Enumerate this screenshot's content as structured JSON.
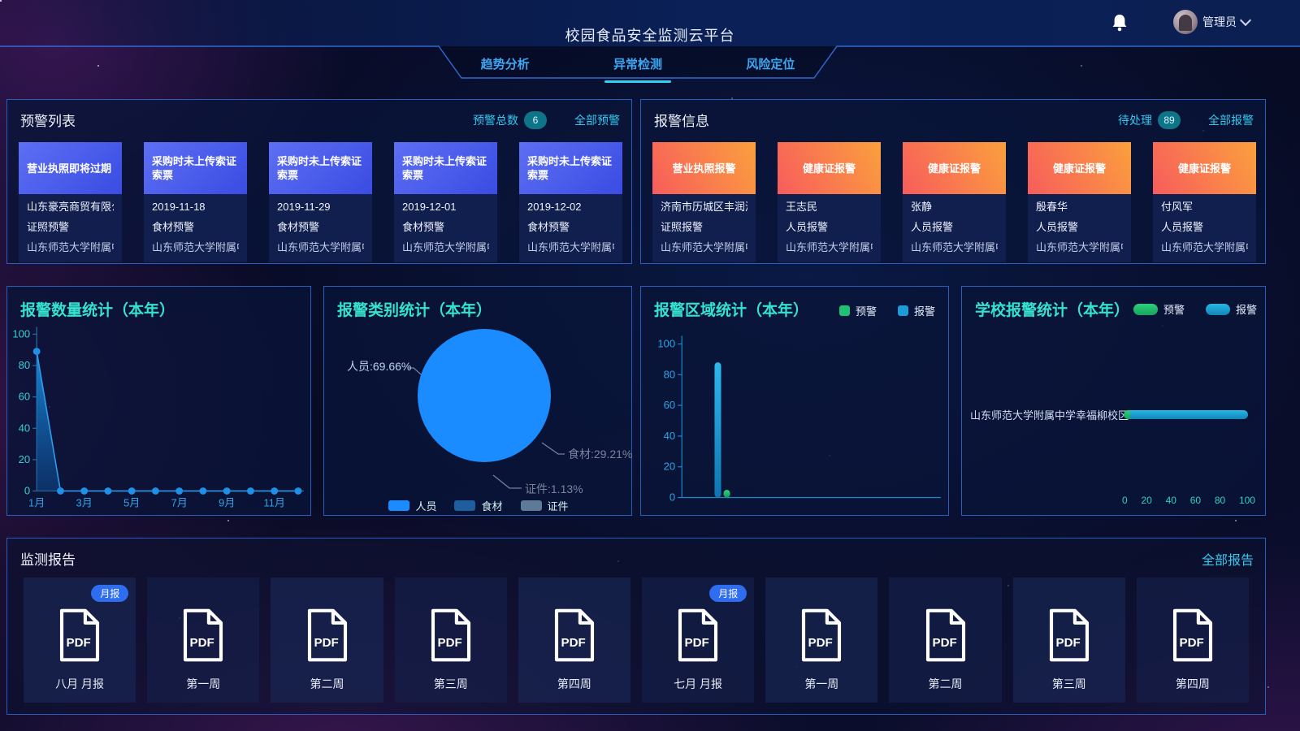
{
  "header": {
    "title": "校园食品安全监测云平台",
    "user_name": "管理员",
    "tabs": [
      {
        "label": "趋势分析",
        "active": false
      },
      {
        "label": "异常检测",
        "active": true
      },
      {
        "label": "风险定位",
        "active": false
      }
    ]
  },
  "warning_panel": {
    "title": "预警列表",
    "total_label": "预警总数",
    "total_count": "6",
    "all_link": "全部预警",
    "cards": [
      {
        "title": "营业执照即将过期",
        "line1": "山东豪亮商贸有限公司",
        "line2": "证照预警",
        "line3": "山东师范大学附属中..."
      },
      {
        "title": "采购时未上传索证索票",
        "line1": "2019-11-18",
        "line2": "食材预警",
        "line3": "山东师范大学附属中..."
      },
      {
        "title": "采购时未上传索证索票",
        "line1": "2019-11-29",
        "line2": "食材预警",
        "line3": "山东师范大学附属中..."
      },
      {
        "title": "采购时未上传索证索票",
        "line1": "2019-12-01",
        "line2": "食材预警",
        "line3": "山东师范大学附属中..."
      },
      {
        "title": "采购时未上传索证索票",
        "line1": "2019-12-02",
        "line2": "食材预警",
        "line3": "山东师范大学附属中..."
      }
    ]
  },
  "alarm_panel": {
    "title": "报警信息",
    "pending_label": "待处理",
    "pending_count": "89",
    "all_link": "全部报警",
    "cards": [
      {
        "title": "营业执照报警",
        "line1": "济南市历城区丰润源...",
        "line2": "证照报警",
        "line3": "山东师范大学附属中..."
      },
      {
        "title": "健康证报警",
        "line1": "王志民",
        "line2": "人员报警",
        "line3": "山东师范大学附属中..."
      },
      {
        "title": "健康证报警",
        "line1": "张静",
        "line2": "人员报警",
        "line3": "山东师范大学附属中..."
      },
      {
        "title": "健康证报警",
        "line1": "殷春华",
        "line2": "人员报警",
        "line3": "山东师范大学附属中..."
      },
      {
        "title": "健康证报警",
        "line1": "付风军",
        "line2": "人员报警",
        "line3": "山东师范大学附属中..."
      }
    ]
  },
  "reports_panel": {
    "title": "监测报告",
    "all_link": "全部报告",
    "items": [
      {
        "label": "八月 月报",
        "badge": "月报"
      },
      {
        "label": "第一周"
      },
      {
        "label": "第二周"
      },
      {
        "label": "第三周"
      },
      {
        "label": "第四周"
      },
      {
        "label": "七月 月报",
        "badge": "月报"
      },
      {
        "label": "第一周"
      },
      {
        "label": "第二周"
      },
      {
        "label": "第三周"
      },
      {
        "label": "第四周"
      }
    ]
  },
  "chart_data": [
    {
      "type": "area",
      "title": "报警数量统计（本年）",
      "categories": [
        "1月",
        "2月",
        "3月",
        "4月",
        "5月",
        "6月",
        "7月",
        "8月",
        "9月",
        "10月",
        "11月",
        "12月"
      ],
      "values": [
        89,
        0,
        0,
        0,
        0,
        0,
        0,
        0,
        0,
        0,
        0,
        0
      ],
      "x_ticks_shown": [
        "1月",
        "3月",
        "5月",
        "7月",
        "9月",
        "11月"
      ],
      "ylim": [
        0,
        100
      ],
      "line_color": "#2f9ae8",
      "point_color": "#1f8fe8"
    },
    {
      "type": "pie",
      "title": "报警类别统计（本年）",
      "start_angle": 174.3,
      "slices": [
        {
          "name": "人员",
          "pct": 69.66,
          "label": "人员:69.66%",
          "color": "#1a8cff"
        },
        {
          "name": "食材",
          "pct": 29.21,
          "label": "食材:29.21%",
          "color": "#1f5e9e"
        },
        {
          "name": "证件",
          "pct": 1.13,
          "label": "证件:1.13%",
          "color": "#5d7a99"
        }
      ],
      "legend_position": "bottom"
    },
    {
      "type": "bar",
      "title": "报警区域统计（本年）",
      "ylim": [
        0,
        100
      ],
      "series": [
        {
          "name": "预警",
          "value": 5,
          "color": "#1fbf74"
        },
        {
          "name": "报警",
          "value": 88,
          "color": "#1d9ad8"
        }
      ],
      "legend_position": "top-right"
    },
    {
      "type": "hbar-stacked",
      "title": "学校报警统计（本年）",
      "category": "山东师范大学附属中学幸福柳校区",
      "xlim": [
        0,
        100
      ],
      "x_ticks": [
        "0",
        "20",
        "40",
        "60",
        "80",
        "100"
      ],
      "series": [
        {
          "name": "预警",
          "value": 5,
          "color": "#1fbf74"
        },
        {
          "name": "报警",
          "value": 88,
          "color": "#1d9ad8"
        }
      ],
      "legend_position": "top-right"
    }
  ],
  "colors": {
    "accent_cyan": "#35e2cf",
    "link_cyan": "#33c9f0",
    "panel_border": "#2b5cc0",
    "badge_teal": "#0e7488",
    "tag_blue": "#2e6cf0",
    "warn_green": "#1fbf74",
    "alarm_blue": "#1d9ad8"
  }
}
